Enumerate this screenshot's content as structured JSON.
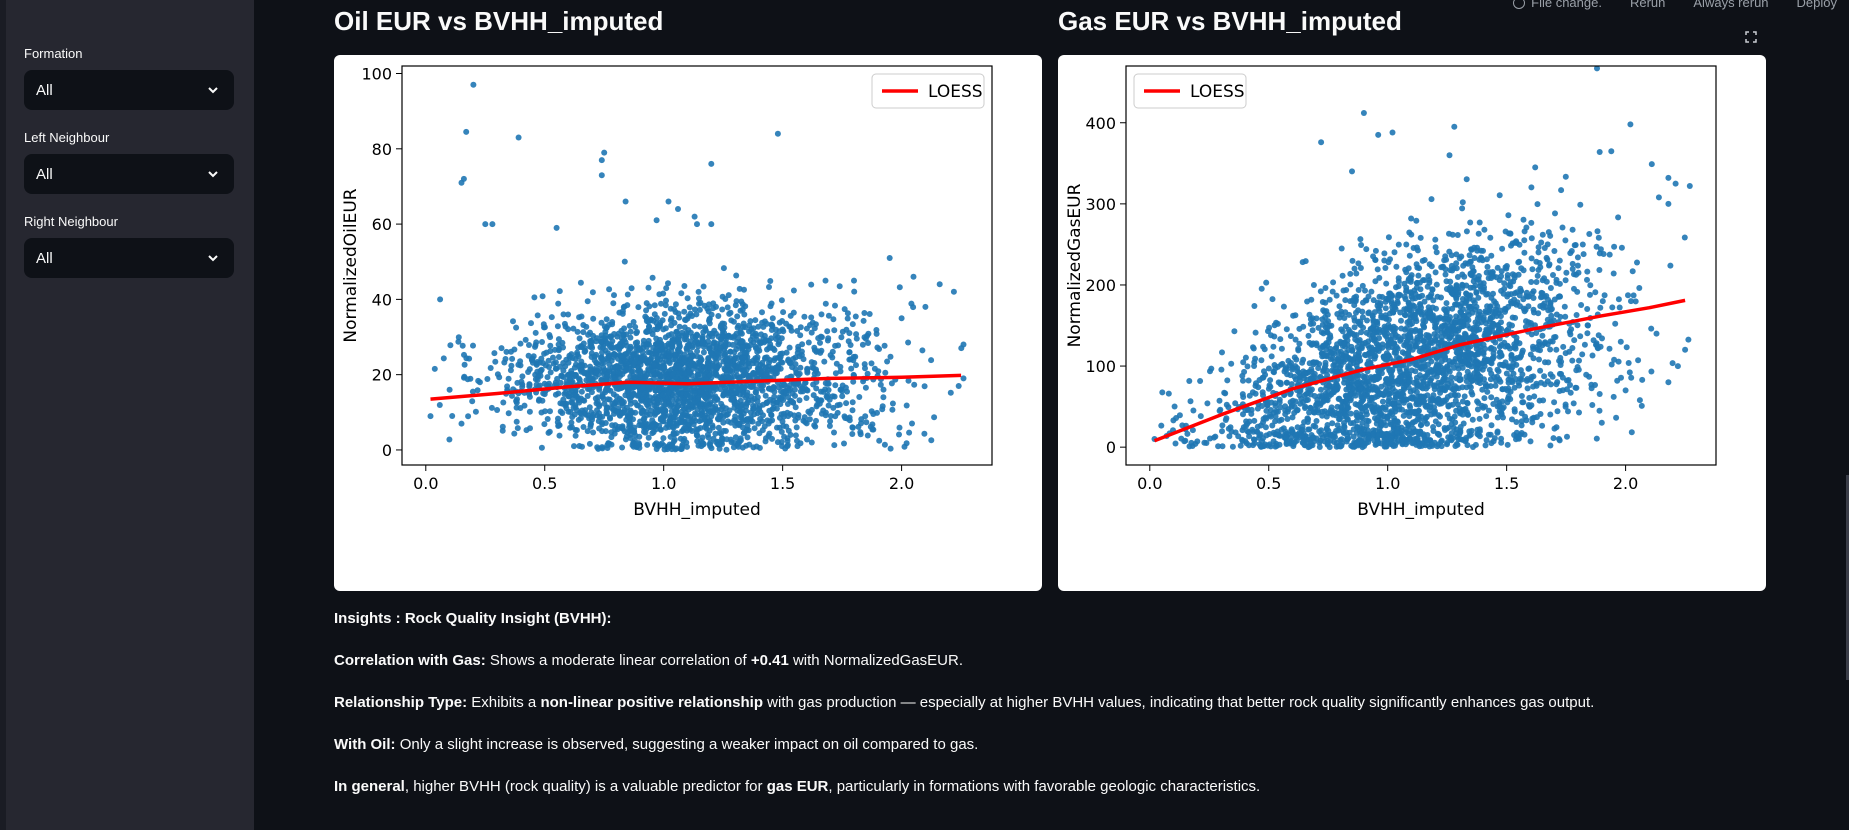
{
  "sidebar": {
    "filters": [
      {
        "label": "Formation",
        "value": "All"
      },
      {
        "label": "Left Neighbour",
        "value": "All"
      },
      {
        "label": "Right Neighbour",
        "value": "All"
      }
    ]
  },
  "toolbar": {
    "file_change": "File change.",
    "rerun": "Rerun",
    "always_rerun": "Always rerun",
    "deploy": "Deploy"
  },
  "charts": [
    {
      "title": "Oil EUR vs BVHH_imputed"
    },
    {
      "title": "Gas EUR vs BVHH_imputed"
    }
  ],
  "chart_data": [
    {
      "type": "scatter",
      "title": "",
      "xlabel": "BVHH_imputed",
      "ylabel": "NormalizedOilEUR",
      "xlim": [
        -0.1,
        2.38
      ],
      "ylim": [
        -4,
        102
      ],
      "xticks": [
        0.0,
        0.5,
        1.0,
        1.5,
        2.0
      ],
      "yticks": [
        0,
        20,
        40,
        60,
        80,
        100
      ],
      "legend": {
        "position": "top-right",
        "entries": [
          "LOESS"
        ]
      },
      "point_color": "#1f77b4",
      "cloud": {
        "x_center": 1.1,
        "x_spread": 0.38,
        "y_center": 19,
        "y_spread": 9,
        "y_min": 0,
        "n": 2600
      },
      "outliers": [
        [
          0.2,
          97
        ],
        [
          0.17,
          84.5
        ],
        [
          0.39,
          83
        ],
        [
          1.48,
          84
        ],
        [
          0.75,
          79
        ],
        [
          0.74,
          77
        ],
        [
          0.74,
          73
        ],
        [
          1.2,
          76
        ],
        [
          0.15,
          71
        ],
        [
          0.16,
          72
        ],
        [
          0.25,
          60
        ],
        [
          0.28,
          60
        ],
        [
          0.06,
          40
        ],
        [
          0.84,
          66
        ],
        [
          1.02,
          66
        ],
        [
          1.06,
          64
        ],
        [
          1.13,
          62
        ],
        [
          1.14,
          60
        ],
        [
          1.2,
          60
        ],
        [
          1.68,
          45
        ],
        [
          1.8,
          45
        ],
        [
          1.95,
          51
        ],
        [
          2.05,
          46
        ],
        [
          2.1,
          38
        ],
        [
          2.16,
          44
        ],
        [
          2.22,
          42
        ],
        [
          2.0,
          35
        ],
        [
          2.26,
          28
        ],
        [
          2.24,
          17
        ],
        [
          2.26,
          19
        ],
        [
          0.02,
          9
        ],
        [
          0.1,
          16
        ],
        [
          0.15,
          7
        ],
        [
          0.97,
          61
        ],
        [
          0.55,
          59
        ]
      ],
      "series": [
        {
          "name": "LOESS",
          "color": "#ff0000",
          "x": [
            0.02,
            0.3,
            0.6,
            0.85,
            1.1,
            1.4,
            1.7,
            2.0,
            2.25
          ],
          "y": [
            13.5,
            15,
            16.8,
            18,
            17.6,
            18.3,
            19,
            19.3,
            19.8
          ]
        }
      ]
    },
    {
      "type": "scatter",
      "title": "",
      "xlabel": "BVHH_imputed",
      "ylabel": "NormalizedGasEUR",
      "xlim": [
        -0.1,
        2.38
      ],
      "ylim": [
        -22,
        470
      ],
      "xticks": [
        0.0,
        0.5,
        1.0,
        1.5,
        2.0
      ],
      "yticks": [
        0,
        100,
        200,
        300,
        400
      ],
      "legend": {
        "position": "top-left",
        "entries": [
          "LOESS"
        ]
      },
      "point_color": "#1f77b4",
      "cloud": {
        "x_center": 1.1,
        "x_spread": 0.38,
        "y_slope": 80,
        "y_intercept": 12,
        "y_spread": 75,
        "y_min": 0,
        "n": 2900
      },
      "outliers": [
        [
          1.88,
          467
        ],
        [
          0.9,
          412
        ],
        [
          0.96,
          385
        ],
        [
          1.02,
          388
        ],
        [
          1.28,
          395
        ],
        [
          1.94,
          365
        ],
        [
          2.02,
          398
        ],
        [
          2.11,
          349
        ],
        [
          2.18,
          332
        ],
        [
          2.21,
          325
        ],
        [
          2.27,
          322
        ],
        [
          2.14,
          308
        ],
        [
          2.18,
          300
        ],
        [
          0.72,
          376
        ],
        [
          0.85,
          340
        ],
        [
          1.26,
          360
        ],
        [
          1.62,
          345
        ],
        [
          0.08,
          66
        ],
        [
          0.02,
          10
        ],
        [
          0.15,
          22
        ],
        [
          1.86,
          52
        ],
        [
          1.95,
          62
        ],
        [
          2.06,
          58
        ],
        [
          2.18,
          80
        ],
        [
          2.25,
          120
        ],
        [
          2.22,
          100
        ],
        [
          1.72,
          10
        ],
        [
          1.9,
          30
        ],
        [
          2.0,
          70
        ],
        [
          2.13,
          140
        ]
      ],
      "series": [
        {
          "name": "LOESS",
          "color": "#ff0000",
          "x": [
            0.02,
            0.3,
            0.6,
            0.9,
            1.1,
            1.3,
            1.6,
            1.9,
            2.1,
            2.25
          ],
          "y": [
            8,
            40,
            72,
            96,
            108,
            126,
            145,
            162,
            172,
            181
          ]
        }
      ]
    }
  ],
  "insights": {
    "heading": "Insights : Rock Quality Insight (BVHH):",
    "gas_label": "Correlation with Gas:",
    "gas_text_1": " Shows a moderate linear correlation of ",
    "gas_value": "+0.41",
    "gas_text_2": " with NormalizedGasEUR.",
    "rel_label": "Relationship Type:",
    "rel_text_1": " Exhibits a ",
    "rel_emph": "non-linear positive relationship",
    "rel_text_2": " with gas production — especially at higher BVHH values, indicating that better rock quality significantly enhances gas output.",
    "oil_label": "With Oil:",
    "oil_text": " Only a slight increase is observed, suggesting a weaker impact on oil compared to gas.",
    "gen_label": "In general",
    "gen_text_1": ", higher BVHH (rock quality) is a valuable predictor for ",
    "gen_emph": "gas EUR",
    "gen_text_2": ", particularly in formations with favorable geologic characteristics."
  }
}
